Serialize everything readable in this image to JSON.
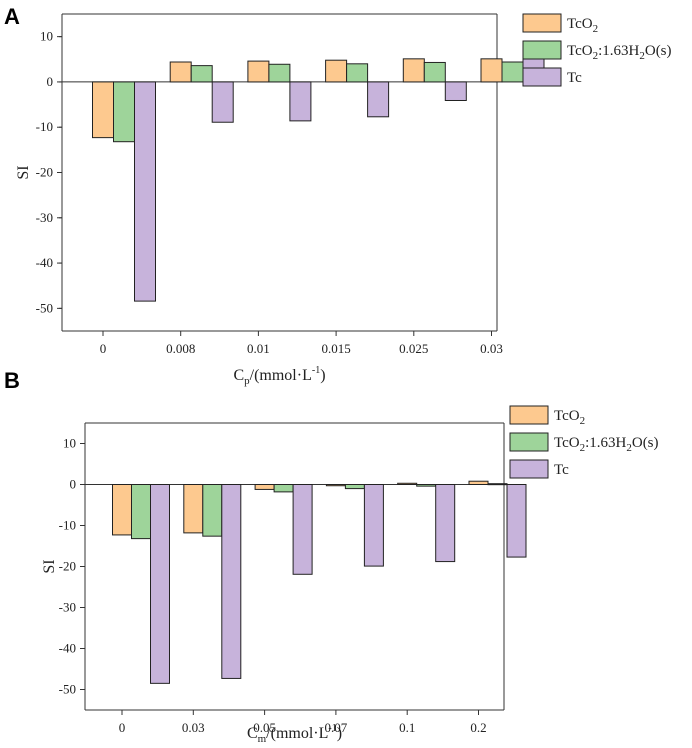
{
  "colors": {
    "TcO2": "#fdc98f",
    "TcO2_hydrate": "#9ed49a",
    "Tc": "#c7b3db"
  },
  "chart_data": [
    {
      "panel_label": "A",
      "type": "bar",
      "ylabel": "SI",
      "xlabel_main": "C",
      "xlabel_sub": "p",
      "xlabel_rest": "/(mmol·L",
      "xlabel_sup": "-1",
      "xlabel_end": ")",
      "ylim": [
        -55,
        15
      ],
      "yticks": [
        10,
        0,
        -10,
        -20,
        -30,
        -40,
        -50
      ],
      "categories": [
        "0",
        "0.008",
        "0.01",
        "0.015",
        "0.025",
        "0.03"
      ],
      "legend_position": "top-right",
      "legend": [
        {
          "base": "TcO",
          "sub": "2",
          "rest": ""
        },
        {
          "base": "TcO",
          "sub": "2",
          "rest": ":1.63H",
          "sub2": "2",
          "rest2": "O(s)"
        },
        {
          "base": "Tc",
          "sub": "",
          "rest": ""
        }
      ],
      "series": [
        {
          "name": "TcO2",
          "values": [
            -12.3,
            4.4,
            4.6,
            4.8,
            5.1,
            5.1
          ]
        },
        {
          "name": "TcO2:1.63H2O(s)",
          "values": [
            -13.2,
            3.6,
            3.9,
            4.0,
            4.3,
            4.4
          ]
        },
        {
          "name": "Tc",
          "values": [
            -48.4,
            -8.9,
            -8.6,
            -7.7,
            -4.1,
            7.2
          ]
        }
      ]
    },
    {
      "panel_label": "B",
      "type": "bar",
      "ylabel": "SI",
      "xlabel_main": "C",
      "xlabel_sub": "m",
      "xlabel_rest": "/(mmol·L",
      "xlabel_sup": "-1",
      "xlabel_end": ")",
      "ylim": [
        -55,
        15
      ],
      "yticks": [
        10,
        0,
        -10,
        -20,
        -30,
        -40,
        -50
      ],
      "categories": [
        "0",
        "0.03",
        "0.05",
        "0.07",
        "0.1",
        "0.2"
      ],
      "legend_position": "top-right",
      "legend": [
        {
          "base": "TcO",
          "sub": "2",
          "rest": ""
        },
        {
          "base": "TcO",
          "sub": "2",
          "rest": ":1.63H",
          "sub2": "2",
          "rest2": "O(s)"
        },
        {
          "base": "Tc",
          "sub": "",
          "rest": ""
        }
      ],
      "series": [
        {
          "name": "TcO2",
          "values": [
            -12.3,
            -11.8,
            -1.2,
            -0.3,
            0.3,
            0.8
          ]
        },
        {
          "name": "TcO2:1.63H2O(s)",
          "values": [
            -13.2,
            -12.6,
            -1.8,
            -1.0,
            -0.4,
            0.2
          ]
        },
        {
          "name": "Tc",
          "values": [
            -48.5,
            -47.3,
            -21.9,
            -19.9,
            -18.8,
            -17.7
          ]
        }
      ]
    }
  ]
}
